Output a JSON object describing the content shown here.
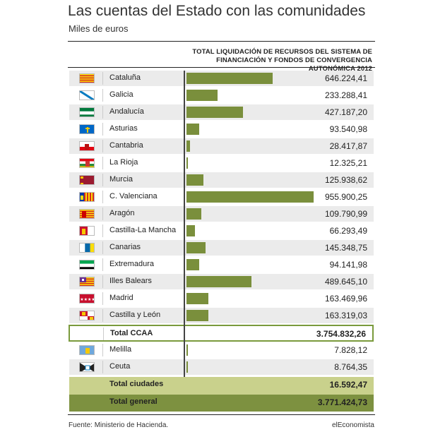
{
  "title": "Las cuentas del Estado con las comunidades",
  "subtitle": "Miles de euros",
  "column_header": [
    "TOTAL LIQUIDACIÓN DE RECURSOS DEL SISTEMA DE",
    "FINANCIACIÓN Y FONDOS DE CONVERGENCIA AUTONÓMICA 2012"
  ],
  "source": "Fuente: Ministerio de Hacienda.",
  "brand": "elEconomista",
  "colors": {
    "bar": "#7a8f3c",
    "total_border": "#7a9a3c",
    "total_green": "#c9d18c",
    "total_dark": "#7d9140",
    "row_shade": "#ebebeb"
  },
  "chart_data": {
    "type": "bar",
    "orientation": "horizontal",
    "title": "Las cuentas del Estado con las comunidades",
    "subtitle": "Miles de euros",
    "categories": [
      "Cataluña",
      "Galicia",
      "Andalucía",
      "Asturias",
      "Cantabria",
      "La Rioja",
      "Murcia",
      "C. Valenciana",
      "Aragón",
      "Castilla-La Mancha",
      "Canarias",
      "Extremadura",
      "Illes Balears",
      "Madrid",
      "Castilla y León",
      "Melilla",
      "Ceuta"
    ],
    "values": [
      646224.41,
      233288.41,
      427187.2,
      93540.98,
      28417.87,
      12325.21,
      125938.62,
      955900.25,
      109790.99,
      66293.49,
      145348.75,
      94141.98,
      489645.1,
      163469.96,
      163319.03,
      7828.12,
      8764.35
    ],
    "labels": [
      "646.224,41",
      "233.288,41",
      "427.187,20",
      "93.540,98",
      "28.417,87",
      "12.325,21",
      "125.938,62",
      "955.900,25",
      "109.790,99",
      "66.293,49",
      "145.348,75",
      "94.141,98",
      "489.645,10",
      "163.469,96",
      "163.319,03",
      "7.828,12",
      "8.764,35"
    ],
    "flags": [
      "cataluna",
      "galicia",
      "andalucia",
      "asturias",
      "cantabria",
      "la-rioja",
      "murcia",
      "c-valenciana",
      "aragon",
      "castilla-la-mancha",
      "canarias",
      "extremadura",
      "illes-balears",
      "madrid",
      "castilla-y-leon",
      "melilla",
      "ceuta"
    ],
    "totals": [
      {
        "name": "Total CCAA",
        "label": "3.754.832,26",
        "value": 3754832.26
      },
      {
        "name": "Total ciudades",
        "label": "16.592,47",
        "value": 16592.47
      },
      {
        "name": "Total general",
        "label": "3.771.424,73",
        "value": 3771424.73
      }
    ]
  }
}
